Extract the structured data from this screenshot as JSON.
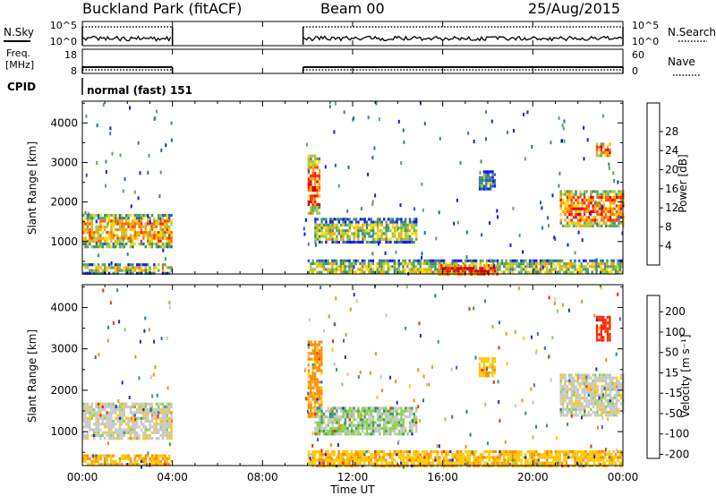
{
  "header": {
    "station": "Buckland Park (fitACF)",
    "beam": "Beam 00",
    "date": "25/Aug/2015"
  },
  "status_panels": {
    "nsky_label": "N.Sky",
    "nsky_ticks": [
      "10^5",
      "10^0"
    ],
    "nsearch_label": "N.Search",
    "nsearch_ticks": [
      "10^5",
      "10^0"
    ],
    "freq_label_1": "Freq.",
    "freq_label_2": "[MHz]",
    "freq_ticks": [
      "18",
      "8"
    ],
    "nave_label": "Nave",
    "nave_ticks": [
      "60",
      "0"
    ],
    "cpid_label": "CPID",
    "cpid_text": "normal (fast) 151"
  },
  "x_axis": {
    "tick_labels": [
      "00:00",
      "04:00",
      "08:00",
      "12:00",
      "16:00",
      "20:00",
      "00:00"
    ],
    "title": "Time UT"
  },
  "chart_data": [
    {
      "type": "heatmap",
      "panel": "power",
      "ylabel": "Slant Range [km]",
      "y_ticks": [
        1000,
        2000,
        3000,
        4000
      ],
      "ylim": [
        180,
        4550
      ],
      "xlim_hours": [
        0,
        24
      ],
      "colorbar": {
        "title": "Power [dB]",
        "tick_labels": [
          "4",
          "8",
          "12",
          "16",
          "20",
          "24",
          "28"
        ],
        "colors": [
          "#1414ff",
          "#2860c0",
          "#3c8a7a",
          "#5aa860",
          "#9ccc40",
          "#ffd800",
          "#ffa400",
          "#ff6400",
          "#ff2800",
          "#d80000"
        ]
      },
      "data_gap_hours": [
        4.0,
        9.8
      ],
      "echo_regions": [
        {
          "t0": 0.0,
          "t1": 4.0,
          "r0": 900,
          "r1": 1700,
          "level": 0.65
        },
        {
          "t0": 0.0,
          "t1": 4.0,
          "r0": 200,
          "r1": 450,
          "level": 0.5
        },
        {
          "t0": 10.0,
          "t1": 10.5,
          "r0": 1700,
          "r1": 3200,
          "level": 0.8
        },
        {
          "t0": 10.3,
          "t1": 14.8,
          "r0": 950,
          "r1": 1600,
          "level": 0.45
        },
        {
          "t0": 10.0,
          "t1": 24.0,
          "r0": 200,
          "r1": 550,
          "level": 0.45
        },
        {
          "t0": 15.8,
          "t1": 18.4,
          "r0": 200,
          "r1": 430,
          "level": 0.95
        },
        {
          "t0": 21.2,
          "t1": 24.0,
          "r0": 1400,
          "r1": 2300,
          "level": 0.75
        },
        {
          "t0": 22.8,
          "t1": 23.4,
          "r0": 3200,
          "r1": 3500,
          "level": 0.8
        },
        {
          "t0": 17.6,
          "t1": 18.3,
          "r0": 2350,
          "r1": 2800,
          "level": 0.3
        }
      ]
    },
    {
      "type": "heatmap",
      "panel": "velocity",
      "ylabel": "Slant Range [km]",
      "y_ticks": [
        1000,
        2000,
        3000,
        4000
      ],
      "ylim": [
        180,
        4550
      ],
      "xlim_hours": [
        0,
        24
      ],
      "colorbar": {
        "title": "Velocity [m s⁻¹]",
        "tick_labels": [
          "200",
          "100",
          "50",
          "15",
          "-15",
          "-50",
          "-100",
          "-200"
        ],
        "colors": [
          "#1a2ccc",
          "#2e72b4",
          "#3e9a60",
          "#8cd24a",
          "#c8c8c8",
          "#ffc800",
          "#ff8c00",
          "#ff2800"
        ]
      },
      "data_gap_hours": [
        4.0,
        9.8
      ],
      "echo_regions": [
        {
          "t0": 0.0,
          "t1": 4.0,
          "r0": 850,
          "r1": 1700,
          "vel": -1
        },
        {
          "t0": 0.0,
          "t1": 4.0,
          "r0": 200,
          "r1": 450,
          "vel": -50
        },
        {
          "t0": 10.0,
          "t1": 10.6,
          "r0": 1400,
          "r1": 3200,
          "vel": -60
        },
        {
          "t0": 10.3,
          "t1": 14.8,
          "r0": 950,
          "r1": 1600,
          "vel": 20
        },
        {
          "t0": 10.0,
          "t1": 24.0,
          "r0": 200,
          "r1": 550,
          "vel": -40
        },
        {
          "t0": 21.2,
          "t1": 24.0,
          "r0": 1400,
          "r1": 2400,
          "vel": 0
        },
        {
          "t0": 22.8,
          "t1": 23.4,
          "r0": 3200,
          "r1": 3800,
          "vel": -250
        },
        {
          "t0": 17.6,
          "t1": 18.3,
          "r0": 2350,
          "r1": 2800,
          "vel": -40
        }
      ]
    }
  ]
}
